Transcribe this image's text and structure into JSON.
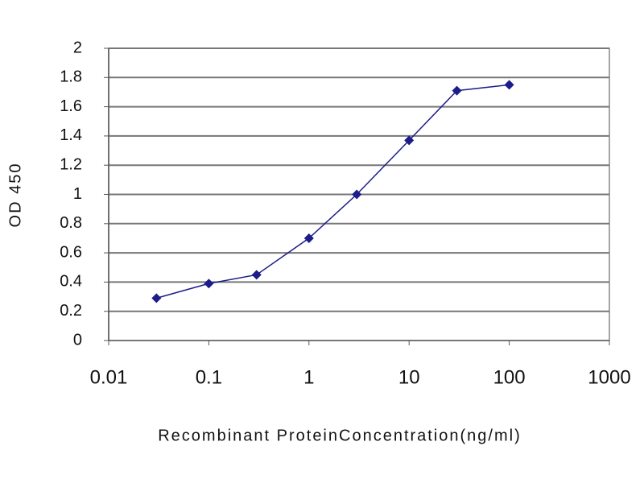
{
  "chart_data": {
    "type": "line",
    "xlabel": "Recombinant ProteinConcentration(ng/ml)",
    "ylabel": "OD 450",
    "x": [
      0.03,
      0.1,
      0.3,
      1,
      3,
      10,
      30,
      100
    ],
    "series": [
      {
        "color": "#1c1c8a",
        "values": [
          0.29,
          0.39,
          0.45,
          0.7,
          1.0,
          1.37,
          1.71,
          1.75
        ]
      }
    ],
    "xscale": "log",
    "xlim": [
      0.01,
      1000
    ],
    "xticks": [
      0.01,
      0.1,
      1,
      10,
      100,
      1000
    ],
    "ylim": [
      0,
      2
    ],
    "yticks": [
      0,
      0.2,
      0.4,
      0.6,
      0.8,
      1,
      1.2,
      1.4,
      1.6,
      1.8,
      2
    ],
    "grid": true
  }
}
